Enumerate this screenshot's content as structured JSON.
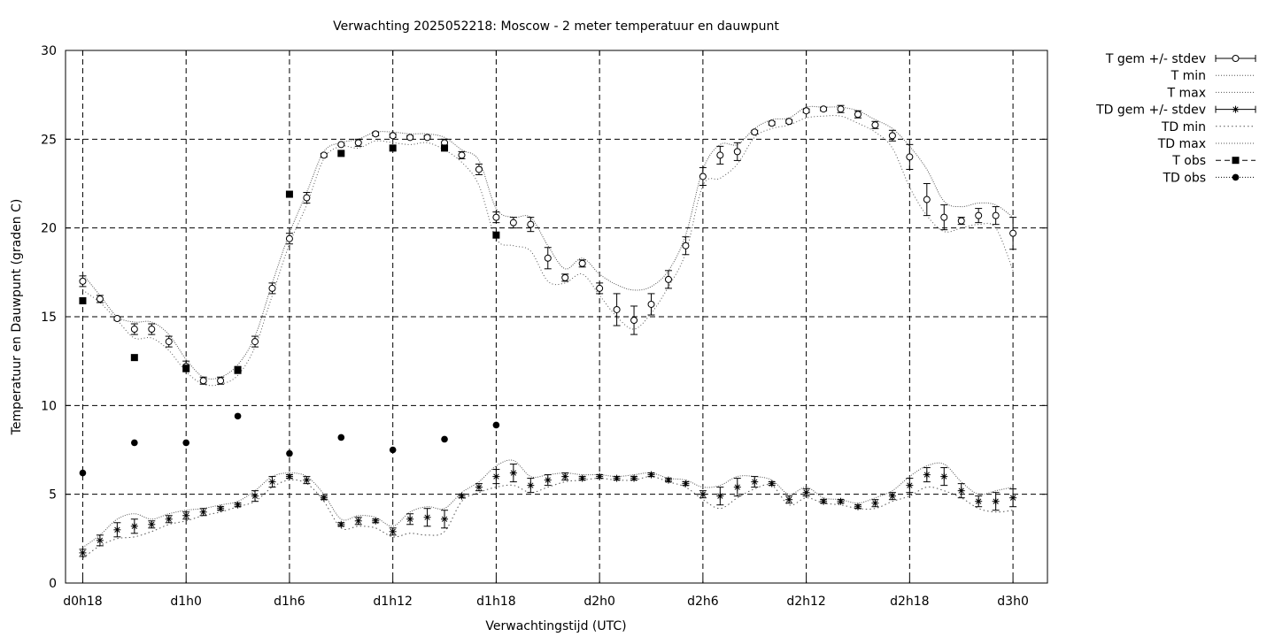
{
  "chart_data": {
    "type": "line",
    "title": "Verwachting 2025052218: Moscow - 2 meter temperatuur en dauwpunt",
    "xlabel": "Verwachtingstijd (UTC)",
    "ylabel": "Temperatuur en Dauwpunt (graden C)",
    "xlim": [
      -1,
      56
    ],
    "ylim": [
      0,
      30
    ],
    "x_ticks": [
      {
        "x": 0,
        "label": "d0h18"
      },
      {
        "x": 6,
        "label": "d1h0"
      },
      {
        "x": 12,
        "label": "d1h6"
      },
      {
        "x": 18,
        "label": "d1h12"
      },
      {
        "x": 24,
        "label": "d1h18"
      },
      {
        "x": 30,
        "label": "d2h0"
      },
      {
        "x": 36,
        "label": "d2h6"
      },
      {
        "x": 42,
        "label": "d2h12"
      },
      {
        "x": 48,
        "label": "d2h18"
      },
      {
        "x": 54,
        "label": "d3h0"
      }
    ],
    "y_ticks": [
      0,
      5,
      10,
      15,
      20,
      25,
      30
    ],
    "grid": true,
    "legend_position": "outside-right",
    "legend": [
      "T gem +/- stdev",
      "T min",
      "T max",
      "TD gem +/- stdev",
      "TD min",
      "TD max",
      "T obs",
      "TD obs"
    ],
    "series": [
      {
        "name": "T gem +/- stdev",
        "x": [
          0,
          1,
          2,
          3,
          4,
          5,
          6,
          7,
          8,
          9,
          10,
          11,
          12,
          13,
          14,
          15,
          16,
          17,
          18,
          19,
          20,
          21,
          22,
          23,
          24,
          25,
          26,
          27,
          28,
          29,
          30,
          31,
          32,
          33,
          34,
          35,
          36,
          37,
          38,
          39,
          40,
          41,
          42,
          43,
          44,
          45,
          46,
          47,
          48,
          49,
          50,
          51,
          52,
          53,
          54
        ],
        "values": [
          17.0,
          16.0,
          14.9,
          14.3,
          14.3,
          13.6,
          12.2,
          11.4,
          11.4,
          12.0,
          13.6,
          16.6,
          19.4,
          21.7,
          24.1,
          24.7,
          24.8,
          25.3,
          25.2,
          25.1,
          25.1,
          24.8,
          24.1,
          23.3,
          20.6,
          20.3,
          20.2,
          18.3,
          17.2,
          18.0,
          16.6,
          15.4,
          14.8,
          15.7,
          17.1,
          19.0,
          22.9,
          24.1,
          24.3,
          25.4,
          25.9,
          26.0,
          26.6,
          26.7,
          26.7,
          26.4,
          25.8,
          25.2,
          24.0,
          21.6,
          20.6,
          20.4,
          20.7,
          20.7,
          19.7
        ],
        "stdev": [
          0.3,
          0.2,
          0.1,
          0.3,
          0.3,
          0.3,
          0.3,
          0.2,
          0.2,
          0.2,
          0.3,
          0.3,
          0.3,
          0.3,
          0.1,
          0.05,
          0.2,
          0.1,
          0.1,
          0.1,
          0.1,
          0.2,
          0.2,
          0.3,
          0.3,
          0.3,
          0.4,
          0.6,
          0.2,
          0.2,
          0.3,
          0.9,
          0.8,
          0.6,
          0.5,
          0.5,
          0.5,
          0.5,
          0.5,
          0.1,
          0.1,
          0.1,
          0.1,
          0.1,
          0.2,
          0.2,
          0.2,
          0.3,
          0.7,
          0.9,
          0.7,
          0.2,
          0.4,
          0.5,
          0.9
        ]
      },
      {
        "name": "T min",
        "x": [
          0,
          1,
          2,
          3,
          4,
          5,
          6,
          7,
          8,
          9,
          10,
          11,
          12,
          13,
          14,
          15,
          16,
          17,
          18,
          19,
          20,
          21,
          22,
          23,
          24,
          25,
          26,
          27,
          28,
          29,
          30,
          31,
          32,
          33,
          34,
          35,
          36,
          37,
          38,
          39,
          40,
          41,
          42,
          43,
          44,
          45,
          46,
          47,
          48,
          49,
          50,
          51,
          52,
          53,
          54
        ],
        "values": [
          16.5,
          15.8,
          14.8,
          13.8,
          13.8,
          13.1,
          11.9,
          11.2,
          11.2,
          11.7,
          13.3,
          16.2,
          19.1,
          21.3,
          23.9,
          24.6,
          24.5,
          24.9,
          24.8,
          24.7,
          24.8,
          24.4,
          23.7,
          22.4,
          19.4,
          19.0,
          18.7,
          17.0,
          16.9,
          17.4,
          16.2,
          15.0,
          14.3,
          15.2,
          16.7,
          18.6,
          22.4,
          22.8,
          23.6,
          25.1,
          25.6,
          25.8,
          26.2,
          26.3,
          26.3,
          25.9,
          25.4,
          24.5,
          22.3,
          20.7,
          19.8,
          20.0,
          20.2,
          20.0,
          17.6
        ]
      },
      {
        "name": "T max",
        "x": [
          0,
          1,
          2,
          3,
          4,
          5,
          6,
          7,
          8,
          9,
          10,
          11,
          12,
          13,
          14,
          15,
          16,
          17,
          18,
          19,
          20,
          21,
          22,
          23,
          24,
          25,
          26,
          27,
          28,
          29,
          30,
          31,
          32,
          33,
          34,
          35,
          36,
          37,
          38,
          39,
          40,
          41,
          42,
          43,
          44,
          45,
          46,
          47,
          48,
          49,
          50,
          51,
          52,
          53,
          54
        ],
        "values": [
          17.4,
          16.2,
          15.0,
          14.7,
          14.7,
          14.0,
          12.6,
          11.6,
          11.6,
          12.3,
          13.9,
          16.9,
          19.7,
          22.0,
          24.3,
          24.8,
          25.0,
          25.4,
          25.4,
          25.3,
          25.3,
          25.1,
          24.4,
          23.8,
          21.1,
          20.6,
          20.6,
          19.0,
          17.7,
          18.3,
          17.4,
          16.8,
          16.5,
          16.7,
          17.6,
          19.6,
          23.3,
          24.7,
          24.7,
          25.6,
          26.1,
          26.2,
          26.8,
          26.8,
          26.8,
          26.6,
          26.1,
          25.6,
          24.6,
          23.3,
          21.5,
          21.2,
          21.4,
          21.3,
          20.6
        ]
      },
      {
        "name": "TD gem +/- stdev",
        "x": [
          0,
          1,
          2,
          3,
          4,
          5,
          6,
          7,
          8,
          9,
          10,
          11,
          12,
          13,
          14,
          15,
          16,
          17,
          18,
          19,
          20,
          21,
          22,
          23,
          24,
          25,
          26,
          27,
          28,
          29,
          30,
          31,
          32,
          33,
          34,
          35,
          36,
          37,
          38,
          39,
          40,
          41,
          42,
          43,
          44,
          45,
          46,
          47,
          48,
          49,
          50,
          51,
          52,
          53,
          54
        ],
        "values": [
          1.7,
          2.4,
          3.0,
          3.2,
          3.3,
          3.6,
          3.8,
          4.0,
          4.2,
          4.4,
          4.9,
          5.7,
          6.0,
          5.8,
          4.8,
          3.3,
          3.5,
          3.5,
          2.9,
          3.6,
          3.7,
          3.6,
          4.9,
          5.4,
          6.0,
          6.2,
          5.5,
          5.8,
          6.0,
          5.9,
          6.0,
          5.9,
          5.9,
          6.1,
          5.8,
          5.6,
          5.0,
          4.9,
          5.4,
          5.7,
          5.6,
          4.7,
          5.1,
          4.6,
          4.6,
          4.3,
          4.5,
          4.9,
          5.5,
          6.1,
          6.0,
          5.2,
          4.6,
          4.6,
          4.8
        ],
        "stdev": [
          0.2,
          0.3,
          0.4,
          0.4,
          0.2,
          0.2,
          0.2,
          0.2,
          0.1,
          0.1,
          0.3,
          0.3,
          0.1,
          0.2,
          0.1,
          0.1,
          0.2,
          0.1,
          0.2,
          0.3,
          0.5,
          0.5,
          0.1,
          0.2,
          0.4,
          0.5,
          0.4,
          0.3,
          0.2,
          0.1,
          0.1,
          0.1,
          0.1,
          0.1,
          0.1,
          0.1,
          0.2,
          0.5,
          0.5,
          0.3,
          0.1,
          0.2,
          0.2,
          0.1,
          0.1,
          0.1,
          0.2,
          0.2,
          0.4,
          0.4,
          0.5,
          0.4,
          0.3,
          0.5,
          0.5
        ]
      },
      {
        "name": "TD min",
        "x": [
          0,
          1,
          2,
          3,
          4,
          5,
          6,
          7,
          8,
          9,
          10,
          11,
          12,
          13,
          14,
          15,
          16,
          17,
          18,
          19,
          20,
          21,
          22,
          23,
          24,
          25,
          26,
          27,
          28,
          29,
          30,
          31,
          32,
          33,
          34,
          35,
          36,
          37,
          38,
          39,
          40,
          41,
          42,
          43,
          44,
          45,
          46,
          47,
          48,
          49,
          50,
          51,
          52,
          53,
          54
        ],
        "values": [
          1.4,
          2.1,
          2.5,
          2.6,
          2.9,
          3.3,
          3.5,
          3.8,
          4.0,
          4.3,
          4.6,
          5.4,
          5.8,
          5.6,
          4.6,
          3.1,
          3.2,
          3.1,
          2.6,
          2.8,
          2.7,
          2.9,
          4.6,
          5.1,
          5.4,
          5.5,
          5.1,
          5.4,
          5.7,
          5.8,
          5.9,
          5.8,
          5.8,
          6.0,
          5.7,
          5.4,
          4.7,
          4.2,
          4.8,
          5.3,
          5.5,
          4.4,
          4.8,
          4.5,
          4.4,
          4.2,
          4.2,
          4.6,
          4.9,
          5.4,
          5.2,
          4.8,
          4.2,
          4.0,
          4.1
        ]
      },
      {
        "name": "TD max",
        "x": [
          0,
          1,
          2,
          3,
          4,
          5,
          6,
          7,
          8,
          9,
          10,
          11,
          12,
          13,
          14,
          15,
          16,
          17,
          18,
          19,
          20,
          21,
          22,
          23,
          24,
          25,
          26,
          27,
          28,
          29,
          30,
          31,
          32,
          33,
          34,
          35,
          36,
          37,
          38,
          39,
          40,
          41,
          42,
          43,
          44,
          45,
          46,
          47,
          48,
          49,
          50,
          51,
          52,
          53,
          54
        ],
        "values": [
          2.0,
          2.7,
          3.6,
          3.9,
          3.6,
          3.9,
          4.1,
          4.2,
          4.4,
          4.6,
          5.2,
          6.0,
          6.2,
          6.0,
          5.0,
          3.6,
          3.8,
          3.7,
          3.2,
          4.0,
          4.3,
          4.2,
          5.1,
          5.7,
          6.6,
          6.9,
          6.0,
          6.1,
          6.2,
          6.1,
          6.1,
          6.0,
          6.1,
          6.2,
          5.9,
          5.8,
          5.4,
          5.5,
          6.0,
          6.0,
          5.8,
          5.0,
          5.4,
          4.8,
          4.7,
          4.5,
          4.8,
          5.2,
          6.0,
          6.6,
          6.7,
          5.7,
          5.0,
          5.2,
          5.4
        ]
      },
      {
        "name": "T obs",
        "x": [
          0,
          3,
          6,
          9,
          12,
          15,
          18,
          21,
          24
        ],
        "values": [
          15.9,
          12.7,
          12.1,
          12.0,
          21.9,
          24.2,
          24.5,
          24.5,
          19.6
        ]
      },
      {
        "name": "TD obs",
        "x": [
          0,
          3,
          6,
          9,
          12,
          15,
          18,
          21,
          24
        ],
        "values": [
          6.2,
          7.9,
          7.9,
          9.4,
          7.3,
          8.2,
          7.5,
          8.1,
          8.9
        ]
      }
    ]
  }
}
